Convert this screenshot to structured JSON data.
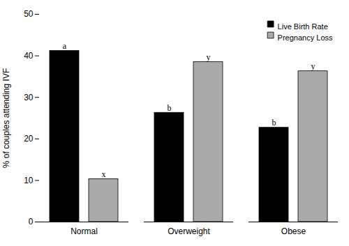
{
  "chart_data": {
    "type": "bar",
    "categories": [
      "Normal",
      "Overweight",
      "Obese"
    ],
    "series": [
      {
        "name": "Live Birth Rate",
        "color": "#000000",
        "values": [
          41.2,
          26.3,
          22.7
        ],
        "annotations": [
          "a",
          "b",
          "b"
        ]
      },
      {
        "name": "Pregnancy Loss",
        "color": "#aaaaaa",
        "values": [
          10.3,
          38.5,
          36.3
        ],
        "annotations": [
          "x",
          "y",
          "y"
        ]
      }
    ],
    "ylabel": "% of couples attending IVF",
    "ylim": [
      0,
      50
    ],
    "yticks": [
      0,
      10,
      20,
      30,
      40,
      50
    ],
    "grid": false,
    "legend": "upper right"
  }
}
